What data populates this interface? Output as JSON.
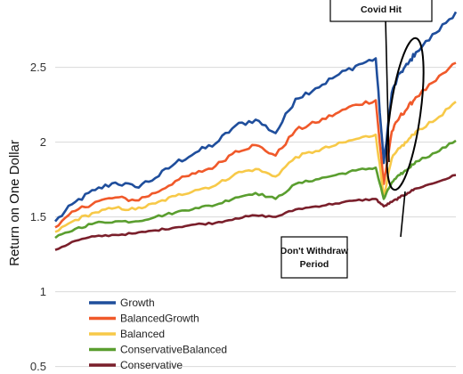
{
  "chart_data": {
    "type": "line",
    "ylabel": "Return on One Dollar",
    "xlabel": "",
    "ylim": [
      0.45,
      2.95
    ],
    "yticks": [
      0.5,
      1,
      1.5,
      2,
      2.5
    ],
    "ytick_labels": [
      "0.5",
      "1",
      "1.5",
      "2",
      "2.5"
    ],
    "grid": "horizontal",
    "legend_position": "bottom-left",
    "x": [
      0,
      0.05,
      0.1,
      0.15,
      0.2,
      0.25,
      0.3,
      0.35,
      0.4,
      0.45,
      0.5,
      0.55,
      0.6,
      0.65,
      0.7,
      0.75,
      0.8,
      0.82,
      0.84,
      0.86,
      0.88,
      0.9,
      0.95,
      1
    ],
    "series": [
      {
        "name": "Growth",
        "color": "#1f4e9c",
        "values": [
          1.47,
          1.6,
          1.68,
          1.73,
          1.7,
          1.76,
          1.86,
          1.93,
          1.99,
          2.11,
          2.15,
          2.06,
          2.29,
          2.36,
          2.44,
          2.51,
          2.56,
          1.86,
          2.33,
          2.46,
          2.52,
          2.6,
          2.73,
          2.87
        ]
      },
      {
        "name": "BalancedGrowth",
        "color": "#f0592a",
        "values": [
          1.43,
          1.54,
          1.6,
          1.63,
          1.61,
          1.66,
          1.74,
          1.79,
          1.84,
          1.94,
          1.98,
          1.91,
          2.08,
          2.13,
          2.19,
          2.25,
          2.28,
          1.72,
          2.07,
          2.17,
          2.23,
          2.3,
          2.41,
          2.53
        ]
      },
      {
        "name": "Balanced",
        "color": "#f7c948",
        "values": [
          1.4,
          1.48,
          1.53,
          1.56,
          1.55,
          1.59,
          1.64,
          1.68,
          1.71,
          1.79,
          1.82,
          1.77,
          1.9,
          1.94,
          1.98,
          2.02,
          2.05,
          1.64,
          1.89,
          1.96,
          2.01,
          2.07,
          2.15,
          2.27
        ]
      },
      {
        "name": "ConservativeBalanced",
        "color": "#5a9e2f",
        "values": [
          1.36,
          1.42,
          1.46,
          1.47,
          1.47,
          1.5,
          1.53,
          1.56,
          1.58,
          1.63,
          1.66,
          1.62,
          1.72,
          1.75,
          1.78,
          1.81,
          1.83,
          1.62,
          1.73,
          1.78,
          1.82,
          1.87,
          1.93,
          2.01
        ]
      },
      {
        "name": "Conservative",
        "color": "#7a1f2b",
        "values": [
          1.28,
          1.34,
          1.37,
          1.38,
          1.39,
          1.41,
          1.43,
          1.45,
          1.46,
          1.49,
          1.51,
          1.5,
          1.55,
          1.57,
          1.59,
          1.61,
          1.62,
          1.57,
          1.6,
          1.63,
          1.66,
          1.69,
          1.73,
          1.78
        ]
      }
    ],
    "annotations": [
      {
        "text": "Covid Hit"
      },
      {
        "text": "Don't Withdraw Period"
      }
    ]
  }
}
